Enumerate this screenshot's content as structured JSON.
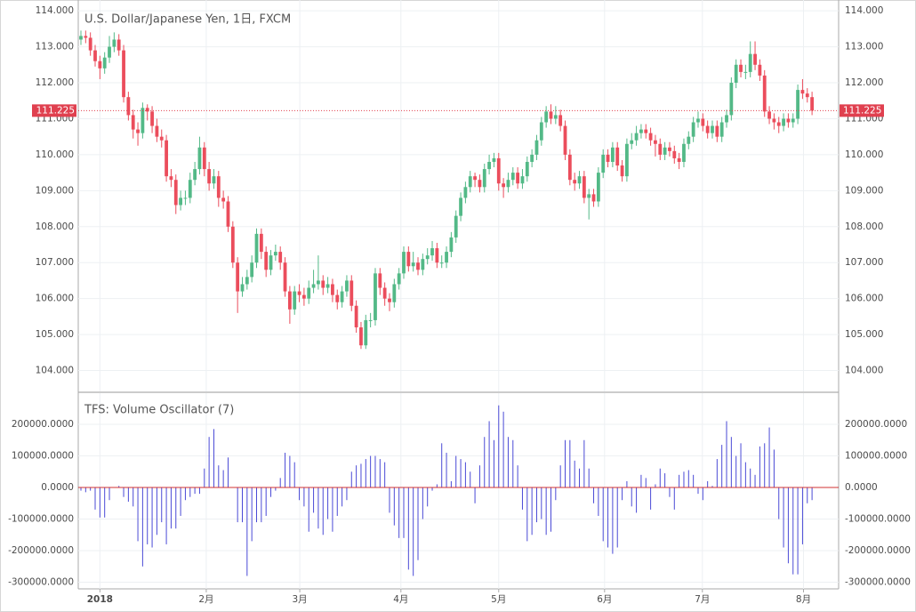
{
  "chart_data": [
    {
      "type": "candlestick",
      "title": "U.S. Dollar/Japanese Yen, 1日, FXCM",
      "up_color": "#53b987",
      "down_color": "#eb4d5c",
      "grid": true,
      "xlim": [
        -0.56,
        159.6
      ],
      "ylim": [
        103.42,
        114.3
      ],
      "yticks": [
        {
          "value": 104,
          "label": "104.000"
        },
        {
          "value": 105,
          "label": "105.000"
        },
        {
          "value": 106,
          "label": "106.000"
        },
        {
          "value": 107,
          "label": "107.000"
        },
        {
          "value": 108,
          "label": "108.000"
        },
        {
          "value": 109,
          "label": "109.000"
        },
        {
          "value": 110,
          "label": "110.000"
        },
        {
          "value": 111,
          "label": "111.000"
        },
        {
          "value": 112,
          "label": "112.000"
        },
        {
          "value": 113,
          "label": "113.000"
        },
        {
          "value": 114,
          "label": "114.000"
        }
      ],
      "last_price": 111.225,
      "last_price_color": "#e0404f",
      "ohlc": [
        [
          113.2,
          113.45,
          113.05,
          113.3
        ],
        [
          113.3,
          113.45,
          113.1,
          113.25
        ],
        [
          113.25,
          113.4,
          112.75,
          112.9
        ],
        [
          112.9,
          113.05,
          112.45,
          112.6
        ],
        [
          112.6,
          112.75,
          112.1,
          112.4
        ],
        [
          112.4,
          112.85,
          112.25,
          112.7
        ],
        [
          112.7,
          113.3,
          112.55,
          113.0
        ],
        [
          113.0,
          113.4,
          112.85,
          113.2
        ],
        [
          113.2,
          113.35,
          112.75,
          112.9
        ],
        [
          112.9,
          113.05,
          111.45,
          111.6
        ],
        [
          111.6,
          111.75,
          110.95,
          111.1
        ],
        [
          111.1,
          111.25,
          110.45,
          110.7
        ],
        [
          110.7,
          110.9,
          110.25,
          110.6
        ],
        [
          110.6,
          111.45,
          110.45,
          111.3
        ],
        [
          111.3,
          111.4,
          110.95,
          111.2
        ],
        [
          111.2,
          111.35,
          110.6,
          110.8
        ],
        [
          110.8,
          111.0,
          110.35,
          110.5
        ],
        [
          110.5,
          110.7,
          110.2,
          110.4
        ],
        [
          110.4,
          110.55,
          109.25,
          109.4
        ],
        [
          109.4,
          109.6,
          109.1,
          109.3
        ],
        [
          109.3,
          109.45,
          108.35,
          108.6
        ],
        [
          108.6,
          109.0,
          108.45,
          108.8
        ],
        [
          108.8,
          109.0,
          108.6,
          108.8
        ],
        [
          108.8,
          109.5,
          108.65,
          109.3
        ],
        [
          109.3,
          109.8,
          109.15,
          109.6
        ],
        [
          109.6,
          110.5,
          109.45,
          110.2
        ],
        [
          110.2,
          110.35,
          109.4,
          109.6
        ],
        [
          109.6,
          109.8,
          109.0,
          109.2
        ],
        [
          109.2,
          109.6,
          109.05,
          109.4
        ],
        [
          109.4,
          109.55,
          108.55,
          108.8
        ],
        [
          108.8,
          109.0,
          108.5,
          108.7
        ],
        [
          108.7,
          108.85,
          107.85,
          108.0
        ],
        [
          108.0,
          108.15,
          106.85,
          107.0
        ],
        [
          107.0,
          107.15,
          105.6,
          106.2
        ],
        [
          106.2,
          106.6,
          106.05,
          106.4
        ],
        [
          106.4,
          106.8,
          106.25,
          106.6
        ],
        [
          106.6,
          107.2,
          106.45,
          107.0
        ],
        [
          107.0,
          107.95,
          106.85,
          107.8
        ],
        [
          107.8,
          107.95,
          107.1,
          107.3
        ],
        [
          107.3,
          107.45,
          106.6,
          106.8
        ],
        [
          106.8,
          107.35,
          106.65,
          107.2
        ],
        [
          107.2,
          107.5,
          107.05,
          107.3
        ],
        [
          107.3,
          107.45,
          106.8,
          107.0
        ],
        [
          107.0,
          107.15,
          106.05,
          106.2
        ],
        [
          106.2,
          106.35,
          105.3,
          105.7
        ],
        [
          105.7,
          106.35,
          105.55,
          106.2
        ],
        [
          106.2,
          106.4,
          105.9,
          106.1
        ],
        [
          106.1,
          106.3,
          105.8,
          106.0
        ],
        [
          106.0,
          106.5,
          105.85,
          106.3
        ],
        [
          106.3,
          106.8,
          106.15,
          106.4
        ],
        [
          106.4,
          107.2,
          106.25,
          106.5
        ],
        [
          106.5,
          106.65,
          106.1,
          106.3
        ],
        [
          106.3,
          106.6,
          106.15,
          106.4
        ],
        [
          106.4,
          106.55,
          105.9,
          106.1
        ],
        [
          106.1,
          106.25,
          105.7,
          105.9
        ],
        [
          105.9,
          106.35,
          105.75,
          106.2
        ],
        [
          106.2,
          106.65,
          106.05,
          106.5
        ],
        [
          106.5,
          106.65,
          105.65,
          105.8
        ],
        [
          105.8,
          105.95,
          105.05,
          105.2
        ],
        [
          105.2,
          105.35,
          104.6,
          104.7
        ],
        [
          104.7,
          105.55,
          104.6,
          105.4
        ],
        [
          105.4,
          105.6,
          105.2,
          105.4
        ],
        [
          105.4,
          106.85,
          105.25,
          106.7
        ],
        [
          106.7,
          106.85,
          106.1,
          106.3
        ],
        [
          106.3,
          106.45,
          105.8,
          106.0
        ],
        [
          106.0,
          106.15,
          105.65,
          105.9
        ],
        [
          105.9,
          106.55,
          105.75,
          106.4
        ],
        [
          106.4,
          106.85,
          106.25,
          106.7
        ],
        [
          106.7,
          107.45,
          106.55,
          107.3
        ],
        [
          107.3,
          107.45,
          106.75,
          106.9
        ],
        [
          106.9,
          107.3,
          106.75,
          107.0
        ],
        [
          107.0,
          107.15,
          106.65,
          106.8
        ],
        [
          106.8,
          107.25,
          106.65,
          107.1
        ],
        [
          107.1,
          107.4,
          106.95,
          107.2
        ],
        [
          107.2,
          107.6,
          107.05,
          107.4
        ],
        [
          107.4,
          107.55,
          106.85,
          107.0
        ],
        [
          107.0,
          107.2,
          106.85,
          107.0
        ],
        [
          107.0,
          107.45,
          106.85,
          107.3
        ],
        [
          107.3,
          107.85,
          107.15,
          107.7
        ],
        [
          107.7,
          108.45,
          107.55,
          108.3
        ],
        [
          108.3,
          108.95,
          108.15,
          108.8
        ],
        [
          108.8,
          109.25,
          108.65,
          109.1
        ],
        [
          109.1,
          109.55,
          108.95,
          109.4
        ],
        [
          109.4,
          109.5,
          109.1,
          109.3
        ],
        [
          109.3,
          109.45,
          108.95,
          109.1
        ],
        [
          109.1,
          109.75,
          108.95,
          109.6
        ],
        [
          109.6,
          110.0,
          109.45,
          109.8
        ],
        [
          109.8,
          110.05,
          109.65,
          109.9
        ],
        [
          109.9,
          110.05,
          109.0,
          109.2
        ],
        [
          109.2,
          109.35,
          108.8,
          109.1
        ],
        [
          109.1,
          109.5,
          108.95,
          109.3
        ],
        [
          109.3,
          109.65,
          109.15,
          109.5
        ],
        [
          109.5,
          109.65,
          109.05,
          109.2
        ],
        [
          109.2,
          109.6,
          109.05,
          109.4
        ],
        [
          109.4,
          109.95,
          109.25,
          109.8
        ],
        [
          109.8,
          110.15,
          109.65,
          110.0
        ],
        [
          110.0,
          110.55,
          109.85,
          110.4
        ],
        [
          110.4,
          111.05,
          110.25,
          110.9
        ],
        [
          110.9,
          111.35,
          110.75,
          111.2
        ],
        [
          111.2,
          111.4,
          110.85,
          111.0
        ],
        [
          111.0,
          111.35,
          110.85,
          111.1
        ],
        [
          111.1,
          111.25,
          110.65,
          110.8
        ],
        [
          110.8,
          110.95,
          109.85,
          110.0
        ],
        [
          110.0,
          110.15,
          109.15,
          109.3
        ],
        [
          109.3,
          109.5,
          109.0,
          109.2
        ],
        [
          109.2,
          109.55,
          109.05,
          109.4
        ],
        [
          109.4,
          109.55,
          108.65,
          108.8
        ],
        [
          108.8,
          109.05,
          108.2,
          108.9
        ],
        [
          108.9,
          109.05,
          108.55,
          108.7
        ],
        [
          108.7,
          109.65,
          108.55,
          109.5
        ],
        [
          109.5,
          110.15,
          109.35,
          110.0
        ],
        [
          110.0,
          110.15,
          109.65,
          109.8
        ],
        [
          109.8,
          110.35,
          109.65,
          110.2
        ],
        [
          110.2,
          110.35,
          109.55,
          109.7
        ],
        [
          109.7,
          109.85,
          109.25,
          109.4
        ],
        [
          109.4,
          110.45,
          109.25,
          110.3
        ],
        [
          110.3,
          110.6,
          110.15,
          110.4
        ],
        [
          110.4,
          110.8,
          110.25,
          110.6
        ],
        [
          110.6,
          110.85,
          110.45,
          110.7
        ],
        [
          110.7,
          110.85,
          110.45,
          110.6
        ],
        [
          110.6,
          110.75,
          110.25,
          110.4
        ],
        [
          110.4,
          110.55,
          109.95,
          110.3
        ],
        [
          110.3,
          110.45,
          109.85,
          110.0
        ],
        [
          110.0,
          110.35,
          109.85,
          110.2
        ],
        [
          110.2,
          110.35,
          109.95,
          110.1
        ],
        [
          110.1,
          110.25,
          109.75,
          109.9
        ],
        [
          109.9,
          110.05,
          109.6,
          109.8
        ],
        [
          109.8,
          110.45,
          109.65,
          110.3
        ],
        [
          110.3,
          110.65,
          110.15,
          110.5
        ],
        [
          110.5,
          111.05,
          110.35,
          110.9
        ],
        [
          110.9,
          111.2,
          110.75,
          111.0
        ],
        [
          111.0,
          111.15,
          110.65,
          110.8
        ],
        [
          110.8,
          110.95,
          110.45,
          110.6
        ],
        [
          110.6,
          110.95,
          110.45,
          110.8
        ],
        [
          110.8,
          110.95,
          110.35,
          110.5
        ],
        [
          110.5,
          111.05,
          110.35,
          110.9
        ],
        [
          110.9,
          111.25,
          110.75,
          111.1
        ],
        [
          111.1,
          112.15,
          110.95,
          112.0
        ],
        [
          112.0,
          112.65,
          111.85,
          112.5
        ],
        [
          112.5,
          112.65,
          112.15,
          112.3
        ],
        [
          112.3,
          112.5,
          112.1,
          112.3
        ],
        [
          112.3,
          113.15,
          112.15,
          112.8
        ],
        [
          112.8,
          113.15,
          112.35,
          112.5
        ],
        [
          112.5,
          112.65,
          112.05,
          112.2
        ],
        [
          112.2,
          112.35,
          111.05,
          111.2
        ],
        [
          111.2,
          111.35,
          110.85,
          111.0
        ],
        [
          111.0,
          111.15,
          110.7,
          110.9
        ],
        [
          110.9,
          111.05,
          110.6,
          110.8
        ],
        [
          110.8,
          111.15,
          110.65,
          111.0
        ],
        [
          111.0,
          111.15,
          110.75,
          110.9
        ],
        [
          110.9,
          111.15,
          110.75,
          111.0
        ],
        [
          111.0,
          111.95,
          110.85,
          111.8
        ],
        [
          111.8,
          112.1,
          111.55,
          111.7
        ],
        [
          111.7,
          111.85,
          111.45,
          111.6
        ],
        [
          111.6,
          111.75,
          111.1,
          111.225
        ]
      ]
    },
    {
      "type": "bar",
      "title": "TFS: Volume Oscillator (7)",
      "color": "#4a4ad6",
      "zero_color": "#d03030",
      "grid": true,
      "xlim": [
        -0.56,
        159.6
      ],
      "ylim": [
        -321000,
        298600
      ],
      "xticks": [
        {
          "value": 4,
          "label": "2018"
        },
        {
          "value": 26.4,
          "label": "2月"
        },
        {
          "value": 46.1,
          "label": "3月"
        },
        {
          "value": 67.4,
          "label": "4月"
        },
        {
          "value": 88,
          "label": "5月"
        },
        {
          "value": 110.3,
          "label": "6月"
        },
        {
          "value": 130.9,
          "label": "7月"
        },
        {
          "value": 152.2,
          "label": "8月"
        }
      ],
      "yticks": [
        {
          "value": -300000,
          "label": "-300000.0000"
        },
        {
          "value": -200000,
          "label": "-200000.0000"
        },
        {
          "value": -100000,
          "label": "-100000.0000"
        },
        {
          "value": 0,
          "label": "0.0000"
        },
        {
          "value": 100000,
          "label": "100000.0000"
        },
        {
          "value": 200000,
          "label": "200000.0000"
        }
      ],
      "values": [
        -10000,
        -15000,
        -10000,
        -70000,
        -95000,
        -95000,
        -40000,
        0,
        5000,
        -30000,
        -45000,
        -60000,
        -170000,
        -250000,
        -180000,
        -190000,
        -150000,
        -110000,
        -180000,
        -130000,
        -130000,
        -90000,
        -40000,
        -30000,
        -20000,
        -20000,
        60000,
        160000,
        185000,
        70000,
        55000,
        95000,
        0,
        -110000,
        -110000,
        -280000,
        -170000,
        -110000,
        -110000,
        -90000,
        -30000,
        -10000,
        30000,
        110000,
        100000,
        80000,
        -40000,
        -60000,
        -140000,
        -80000,
        -130000,
        -150000,
        -100000,
        -140000,
        -90000,
        -60000,
        -40000,
        50000,
        70000,
        75000,
        90000,
        100000,
        100000,
        90000,
        80000,
        -80000,
        -120000,
        -160000,
        -160000,
        -260000,
        -280000,
        -230000,
        -100000,
        -60000,
        -10000,
        10000,
        140000,
        110000,
        20000,
        100000,
        90000,
        80000,
        50000,
        -50000,
        70000,
        160000,
        210000,
        150000,
        260000,
        240000,
        160000,
        150000,
        70000,
        -70000,
        -170000,
        -150000,
        -110000,
        -100000,
        -150000,
        -140000,
        -40000,
        70000,
        150000,
        150000,
        85000,
        60000,
        150000,
        60000,
        -50000,
        -90000,
        -170000,
        -190000,
        -210000,
        -190000,
        -40000,
        20000,
        -60000,
        -80000,
        40000,
        30000,
        -70000,
        10000,
        60000,
        45000,
        -30000,
        -70000,
        40000,
        50000,
        55000,
        40000,
        -20000,
        -40000,
        20000,
        5000,
        90000,
        135000,
        210000,
        160000,
        100000,
        140000,
        80000,
        60000,
        40000,
        130000,
        140000,
        190000,
        120000,
        -100000,
        -190000,
        -240000,
        -275000,
        -275000,
        -180000,
        -50000,
        -40000
      ]
    }
  ]
}
